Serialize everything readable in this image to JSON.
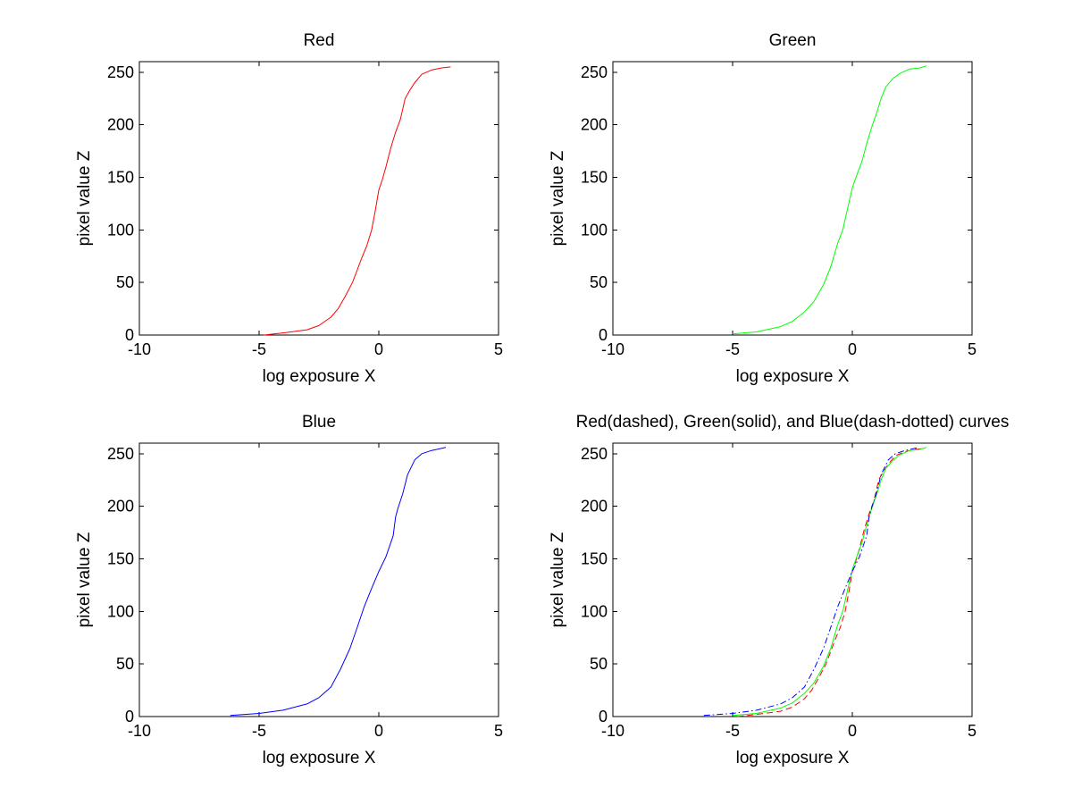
{
  "figure": {
    "background": "#ffffff",
    "axis_color": "#000000"
  },
  "chart_data": [
    {
      "type": "line",
      "title": "Red",
      "xlabel": "log exposure X",
      "ylabel": "pixel value Z",
      "xlim": [
        -10,
        5
      ],
      "ylim": [
        0,
        260
      ],
      "xticks": [
        -10,
        -5,
        0,
        5
      ],
      "yticks": [
        0,
        50,
        100,
        150,
        200,
        250
      ],
      "grid": false,
      "series": [
        {
          "color": "#ff0000",
          "dash": "solid",
          "x": [
            -4.8,
            -4.0,
            -3.0,
            -2.5,
            -2.0,
            -1.7,
            -1.4,
            -1.1,
            -0.9,
            -0.7,
            -0.5,
            -0.3,
            -0.15,
            0.0,
            0.15,
            0.3,
            0.5,
            0.7,
            0.9,
            1.1,
            1.3,
            1.5,
            1.8,
            2.2,
            2.6,
            3.0
          ],
          "y": [
            0,
            2,
            5,
            9,
            17,
            25,
            37,
            50,
            62,
            74,
            85,
            100,
            118,
            138,
            148,
            160,
            178,
            193,
            205,
            225,
            233,
            240,
            248,
            252,
            254,
            255
          ]
        }
      ]
    },
    {
      "type": "line",
      "title": "Green",
      "xlabel": "log exposure X",
      "ylabel": "pixel value Z",
      "xlim": [
        -10,
        5
      ],
      "ylim": [
        0,
        260
      ],
      "xticks": [
        -10,
        -5,
        0,
        5
      ],
      "yticks": [
        0,
        50,
        100,
        150,
        200,
        250
      ],
      "grid": false,
      "series": [
        {
          "color": "#00ff00",
          "dash": "solid",
          "x": [
            -5.0,
            -4.0,
            -3.0,
            -2.5,
            -2.0,
            -1.6,
            -1.2,
            -0.9,
            -0.6,
            -0.4,
            -0.2,
            0.0,
            0.2,
            0.4,
            0.6,
            0.8,
            1.0,
            1.2,
            1.4,
            1.7,
            2.0,
            2.4,
            2.8,
            3.1
          ],
          "y": [
            1,
            3,
            8,
            13,
            22,
            32,
            48,
            65,
            88,
            100,
            120,
            140,
            153,
            165,
            182,
            197,
            210,
            225,
            236,
            244,
            249,
            253,
            254,
            256
          ]
        }
      ]
    },
    {
      "type": "line",
      "title": "Blue",
      "xlabel": "log exposure X",
      "ylabel": "pixel value Z",
      "xlim": [
        -10,
        5
      ],
      "ylim": [
        0,
        260
      ],
      "xticks": [
        -10,
        -5,
        0,
        5
      ],
      "yticks": [
        0,
        50,
        100,
        150,
        200,
        250
      ],
      "grid": false,
      "series": [
        {
          "color": "#0000ff",
          "dash": "solid",
          "x": [
            -6.2,
            -5.0,
            -4.0,
            -3.0,
            -2.5,
            -2.0,
            -1.6,
            -1.2,
            -0.9,
            -0.6,
            -0.3,
            0.0,
            0.3,
            0.6,
            0.7,
            0.8,
            1.0,
            1.2,
            1.5,
            1.8,
            2.2,
            2.8
          ],
          "y": [
            1,
            3,
            6,
            12,
            18,
            28,
            45,
            65,
            85,
            105,
            122,
            138,
            152,
            172,
            190,
            198,
            212,
            230,
            244,
            250,
            253,
            256
          ]
        }
      ]
    },
    {
      "type": "line",
      "title": "Red(dashed), Green(solid), and Blue(dash-dotted) curves",
      "xlabel": "log exposure X",
      "ylabel": "pixel value Z",
      "xlim": [
        -10,
        5
      ],
      "ylim": [
        0,
        260
      ],
      "xticks": [
        -10,
        -5,
        0,
        5
      ],
      "yticks": [
        0,
        50,
        100,
        150,
        200,
        250
      ],
      "grid": false,
      "series": [
        {
          "color": "#ff0000",
          "dash": "dashed",
          "x": [
            -4.8,
            -4.0,
            -3.0,
            -2.5,
            -2.0,
            -1.7,
            -1.4,
            -1.1,
            -0.9,
            -0.7,
            -0.5,
            -0.3,
            -0.15,
            0.0,
            0.15,
            0.3,
            0.5,
            0.7,
            0.9,
            1.1,
            1.3,
            1.5,
            1.8,
            2.2,
            2.6,
            3.0
          ],
          "y": [
            0,
            2,
            5,
            9,
            17,
            25,
            37,
            50,
            62,
            74,
            85,
            100,
            118,
            138,
            148,
            160,
            178,
            193,
            205,
            225,
            233,
            240,
            248,
            252,
            254,
            255
          ]
        },
        {
          "color": "#00ff00",
          "dash": "solid",
          "x": [
            -5.0,
            -4.0,
            -3.0,
            -2.5,
            -2.0,
            -1.6,
            -1.2,
            -0.9,
            -0.6,
            -0.4,
            -0.2,
            0.0,
            0.2,
            0.4,
            0.6,
            0.8,
            1.0,
            1.2,
            1.4,
            1.7,
            2.0,
            2.4,
            2.8,
            3.1
          ],
          "y": [
            1,
            3,
            8,
            13,
            22,
            32,
            48,
            65,
            88,
            100,
            120,
            140,
            153,
            165,
            182,
            197,
            210,
            225,
            236,
            244,
            249,
            253,
            254,
            256
          ]
        },
        {
          "color": "#0000ff",
          "dash": "dashdot",
          "x": [
            -6.2,
            -5.0,
            -4.0,
            -3.0,
            -2.5,
            -2.0,
            -1.6,
            -1.2,
            -0.9,
            -0.6,
            -0.3,
            0.0,
            0.3,
            0.6,
            0.7,
            0.8,
            1.0,
            1.2,
            1.5,
            1.8,
            2.2,
            2.8
          ],
          "y": [
            1,
            3,
            6,
            12,
            18,
            28,
            45,
            65,
            85,
            105,
            122,
            138,
            152,
            172,
            190,
            198,
            212,
            230,
            244,
            250,
            253,
            256
          ]
        }
      ]
    }
  ]
}
